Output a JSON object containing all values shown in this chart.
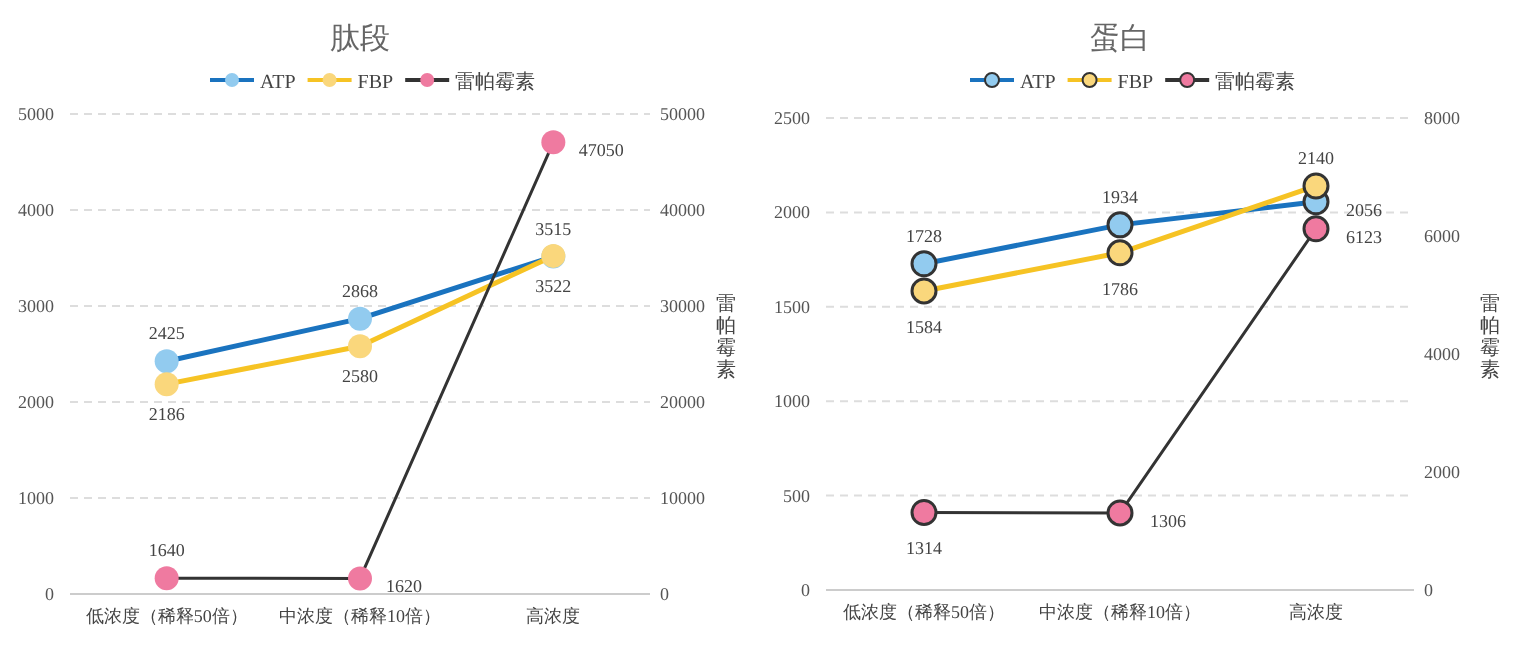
{
  "chart_data": [
    {
      "type": "line",
      "title": "肽段",
      "categories": [
        "低浓度（稀释50倍）",
        "中浓度（稀释10倍）",
        "高浓度"
      ],
      "y2label": "雷帕霉素",
      "ylim": [
        0,
        5000
      ],
      "yticks": [
        0,
        1000,
        2000,
        3000,
        4000,
        5000
      ],
      "y2lim": [
        0,
        50000
      ],
      "y2ticks": [
        0,
        10000,
        20000,
        30000,
        40000,
        50000
      ],
      "grid": "y",
      "legend": "top",
      "marker": "circle",
      "data_labels": true,
      "series": [
        {
          "name": "ATP",
          "color": "#1a73bf",
          "colors": [
            "#92cbef",
            "#92cbef",
            "#92cbef"
          ],
          "values": [
            2425,
            2868,
            3515
          ]
        },
        {
          "name": "FBP",
          "color": "#f6c324",
          "colors": [
            "#fad77c",
            "#fad77c",
            "#fad77c"
          ],
          "values": [
            2186,
            2580,
            3522
          ]
        },
        {
          "name": "雷帕霉素",
          "color": "#333333",
          "colors": [
            "#ef7aa0",
            "#ef7aa0",
            "#ef7aa0"
          ],
          "axis": "y2",
          "values": [
            1640,
            1620,
            47050
          ]
        }
      ]
    },
    {
      "type": "line",
      "title": "蛋白",
      "categories": [
        "低浓度（稀释50倍）",
        "中浓度（稀释10倍）",
        "高浓度"
      ],
      "y2label": "雷帕霉素",
      "ylim": [
        0,
        2500
      ],
      "yticks": [
        0,
        500,
        1000,
        1500,
        2000,
        2500
      ],
      "y2lim": [
        0,
        8000
      ],
      "y2ticks": [
        0,
        2000,
        4000,
        6000,
        8000
      ],
      "grid": "y",
      "legend": "top",
      "marker": "circle",
      "data_labels": true,
      "series": [
        {
          "name": "ATP",
          "color": "#1a73bf",
          "colors": [
            "#92cbef",
            "#92cbef",
            "#92cbef"
          ],
          "values": [
            1728,
            1934,
            2056
          ]
        },
        {
          "name": "FBP",
          "color": "#f6c324",
          "colors": [
            "#fad77c",
            "#fad77c",
            "#fad77c"
          ],
          "values": [
            1584,
            1786,
            2140
          ]
        },
        {
          "name": "雷帕霉素",
          "color": "#333333",
          "colors": [
            "#ef7aa0",
            "#ef7aa0",
            "#ef7aa0"
          ],
          "axis": "y2",
          "values": [
            1314,
            1306,
            6123
          ]
        }
      ]
    }
  ]
}
